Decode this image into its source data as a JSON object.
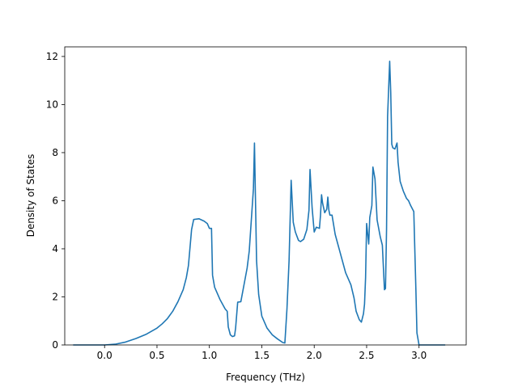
{
  "chart_data": {
    "type": "line",
    "title": "",
    "xlabel": "Frequency (THz)",
    "ylabel": "Density of States",
    "xlim": [
      -0.38,
      3.45
    ],
    "ylim": [
      0,
      12.4
    ],
    "xticks": [
      0.0,
      0.5,
      1.0,
      1.5,
      2.0,
      2.5,
      3.0
    ],
    "xtick_labels": [
      "0.0",
      "0.5",
      "1.0",
      "1.5",
      "2.0",
      "2.5",
      "3.0"
    ],
    "yticks": [
      0,
      2,
      4,
      6,
      8,
      10,
      12
    ],
    "ytick_labels": [
      "0",
      "2",
      "4",
      "6",
      "8",
      "10",
      "12"
    ],
    "grid": false,
    "legend": "none",
    "series": [
      {
        "color": "#1f77b4",
        "x": [
          -0.3,
          0.0,
          0.1,
          0.2,
          0.3,
          0.4,
          0.5,
          0.55,
          0.6,
          0.65,
          0.7,
          0.75,
          0.78,
          0.8,
          0.81,
          0.83,
          0.85,
          0.9,
          0.95,
          0.98,
          1.0,
          1.02,
          1.03,
          1.05,
          1.1,
          1.15,
          1.17,
          1.18,
          1.2,
          1.22,
          1.24,
          1.25,
          1.27,
          1.3,
          1.33,
          1.36,
          1.38,
          1.4,
          1.42,
          1.43,
          1.45,
          1.47,
          1.5,
          1.55,
          1.6,
          1.65,
          1.7,
          1.72,
          1.74,
          1.76,
          1.78,
          1.8,
          1.82,
          1.85,
          1.87,
          1.9,
          1.93,
          1.95,
          1.96,
          1.98,
          2.0,
          2.02,
          2.05,
          2.06,
          2.07,
          2.08,
          2.1,
          2.12,
          2.13,
          2.14,
          2.15,
          2.17,
          2.2,
          2.25,
          2.3,
          2.35,
          2.38,
          2.4,
          2.43,
          2.45,
          2.47,
          2.48,
          2.49,
          2.5,
          2.52,
          2.53,
          2.55,
          2.56,
          2.58,
          2.6,
          2.63,
          2.65,
          2.67,
          2.68,
          2.69,
          2.7,
          2.72,
          2.73,
          2.74,
          2.75,
          2.77,
          2.79,
          2.8,
          2.82,
          2.85,
          2.88,
          2.9,
          2.92,
          2.95,
          2.97,
          2.98,
          3.0,
          3.1,
          3.25
        ],
        "y": [
          0,
          0,
          0.03,
          0.12,
          0.27,
          0.45,
          0.7,
          0.88,
          1.1,
          1.4,
          1.8,
          2.3,
          2.8,
          3.3,
          3.8,
          4.8,
          5.22,
          5.25,
          5.15,
          5.05,
          4.85,
          4.85,
          2.9,
          2.4,
          1.9,
          1.5,
          1.4,
          0.75,
          0.42,
          0.35,
          0.38,
          0.7,
          1.78,
          1.8,
          2.5,
          3.2,
          3.9,
          5.2,
          6.5,
          8.4,
          3.5,
          2.1,
          1.2,
          0.7,
          0.42,
          0.25,
          0.1,
          0.08,
          1.5,
          3.5,
          6.85,
          5.1,
          4.7,
          4.35,
          4.3,
          4.4,
          4.8,
          5.6,
          7.3,
          5.7,
          4.7,
          4.9,
          4.85,
          5.4,
          6.25,
          5.9,
          5.5,
          5.65,
          6.15,
          5.6,
          5.4,
          5.4,
          4.6,
          3.8,
          3.0,
          2.5,
          1.95,
          1.4,
          1.05,
          0.95,
          1.3,
          1.7,
          2.8,
          5.05,
          4.2,
          5.3,
          5.8,
          7.4,
          6.9,
          5.2,
          4.5,
          4.15,
          2.3,
          2.35,
          4.8,
          9.5,
          11.8,
          10.5,
          8.35,
          8.2,
          8.15,
          8.4,
          7.6,
          6.8,
          6.4,
          6.1,
          6.0,
          5.8,
          5.55,
          2.3,
          0.5,
          0,
          0,
          0
        ]
      }
    ]
  }
}
